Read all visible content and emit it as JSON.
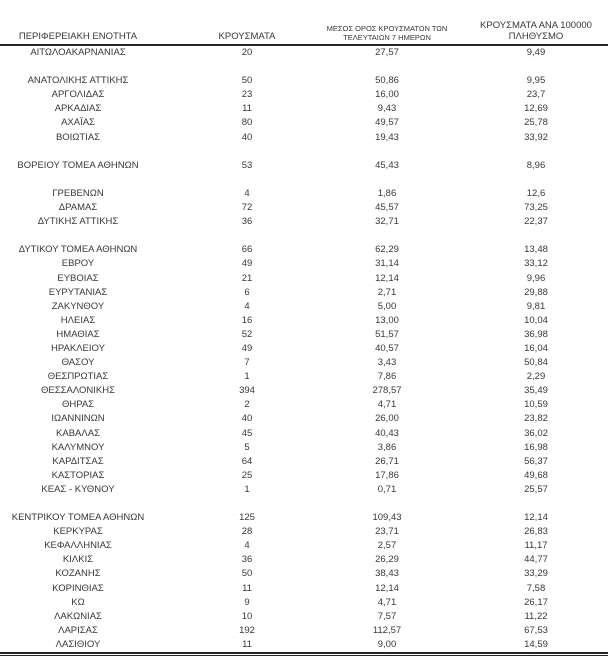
{
  "table": {
    "colors": {
      "text": "#383838",
      "line": "#262626",
      "background": "#ffffff"
    },
    "columns": [
      {
        "id": "region",
        "label": "ΠΕΡΙΦΕΡΕΙΑΚΗ ΕΝΟΤΗΤΑ"
      },
      {
        "id": "cases",
        "label": "ΚΡΟΥΣΜΑΤΑ"
      },
      {
        "id": "avg7",
        "label_line1": "ΜΕΣΟΣ ΟΡΟΣ ΚΡΟΥΣΜΑΤΩΝ ΤΩΝ",
        "label_line2": "ΤΕΛΕΥΤΑΙΩΝ 7 ΗΜΕΡΩΝ"
      },
      {
        "id": "per100k",
        "label_line1": "ΚΡΟΥΣΜΑΤΑ ΑΝΑ 100000",
        "label_line2": "ΠΛΗΘΥΣΜΟ"
      }
    ],
    "groups": [
      {
        "rows": [
          [
            "ΑΙΤΩΛΟΑΚΑΡΝΑΝΙΑΣ",
            "20",
            "27,57",
            "9,49"
          ]
        ]
      },
      {
        "rows": [
          [
            "ΑΝΑΤΟΛΙΚΗΣ ΑΤΤΙΚΗΣ",
            "50",
            "50,86",
            "9,95"
          ],
          [
            "ΑΡΓΟΛΙΔΑΣ",
            "23",
            "16,00",
            "23,7"
          ],
          [
            "ΑΡΚΑΔΙΑΣ",
            "11",
            "9,43",
            "12,69"
          ],
          [
            "ΑΧΑΪΑΣ",
            "80",
            "49,57",
            "25,78"
          ],
          [
            "ΒΟΙΩΤΙΑΣ",
            "40",
            "19,43",
            "33,92"
          ]
        ]
      },
      {
        "rows": [
          [
            "ΒΟΡΕΙΟΥ ΤΟΜΕΑ ΑΘΗΝΩΝ",
            "53",
            "45,43",
            "8,96"
          ]
        ]
      },
      {
        "rows": [
          [
            "ΓΡΕΒΕΝΩΝ",
            "4",
            "1,86",
            "12,6"
          ],
          [
            "ΔΡΑΜΑΣ",
            "72",
            "45,57",
            "73,25"
          ],
          [
            "ΔΥΤΙΚΗΣ ΑΤΤΙΚΗΣ",
            "36",
            "32,71",
            "22,37"
          ]
        ]
      },
      {
        "rows": [
          [
            "ΔΥΤΙΚΟΥ ΤΟΜΕΑ ΑΘΗΝΩΝ",
            "66",
            "62,29",
            "13,48"
          ],
          [
            "ΕΒΡΟΥ",
            "49",
            "31,14",
            "33,12"
          ],
          [
            "ΕΥΒΟΙΑΣ",
            "21",
            "12,14",
            "9,96"
          ],
          [
            "ΕΥΡΥΤΑΝΙΑΣ",
            "6",
            "2,71",
            "29,88"
          ],
          [
            "ΖΑΚΥΝΘΟΥ",
            "4",
            "5,00",
            "9,81"
          ],
          [
            "ΗΛΕΙΑΣ",
            "16",
            "13,00",
            "10,04"
          ],
          [
            "ΗΜΑΘΙΑΣ",
            "52",
            "51,57",
            "36,98"
          ],
          [
            "ΗΡΑΚΛΕΙΟΥ",
            "49",
            "40,57",
            "16,04"
          ],
          [
            "ΘΑΣΟΥ",
            "7",
            "3,43",
            "50,84"
          ],
          [
            "ΘΕΣΠΡΩΤΙΑΣ",
            "1",
            "7,86",
            "2,29"
          ],
          [
            "ΘΕΣΣΑΛΟΝΙΚΗΣ",
            "394",
            "278,57",
            "35,49"
          ],
          [
            "ΘΗΡΑΣ",
            "2",
            "4,71",
            "10,59"
          ],
          [
            "ΙΩΑΝΝΙΝΩΝ",
            "40",
            "26,00",
            "23,82"
          ],
          [
            "ΚΑΒΑΛΑΣ",
            "45",
            "40,43",
            "36,02"
          ],
          [
            "ΚΑΛΥΜΝΟΥ",
            "5",
            "3,86",
            "16,98"
          ],
          [
            "ΚΑΡΔΙΤΣΑΣ",
            "64",
            "26,71",
            "56,37"
          ],
          [
            "ΚΑΣΤΟΡΙΑΣ",
            "25",
            "17,86",
            "49,68"
          ],
          [
            "ΚΕΑΣ - ΚΥΘΝΟΥ",
            "1",
            "0,71",
            "25,57"
          ]
        ]
      },
      {
        "rows": [
          [
            "ΚΕΝΤΡΙΚΟΥ ΤΟΜΕΑ ΑΘΗΝΩΝ",
            "125",
            "109,43",
            "12,14"
          ],
          [
            "ΚΕΡΚΥΡΑΣ",
            "28",
            "23,71",
            "26,83"
          ],
          [
            "ΚΕΦΑΛΛΗΝΙΑΣ",
            "4",
            "2,57",
            "11,17"
          ],
          [
            "ΚΙΛΚΙΣ",
            "36",
            "26,29",
            "44,77"
          ],
          [
            "ΚΟΖΑΝΗΣ",
            "50",
            "38,43",
            "33,29"
          ],
          [
            "ΚΟΡΙΝΘΙΑΣ",
            "11",
            "12,14",
            "7,58"
          ],
          [
            "ΚΩ",
            "9",
            "4,71",
            "26,17"
          ],
          [
            "ΛΑΚΩΝΙΑΣ",
            "10",
            "7,57",
            "11,22"
          ],
          [
            "ΛΑΡΙΣΑΣ",
            "192",
            "112,57",
            "67,53"
          ],
          [
            "ΛΑΣΙΘΙΟΥ",
            "11",
            "9,00",
            "14,59"
          ]
        ]
      }
    ]
  }
}
